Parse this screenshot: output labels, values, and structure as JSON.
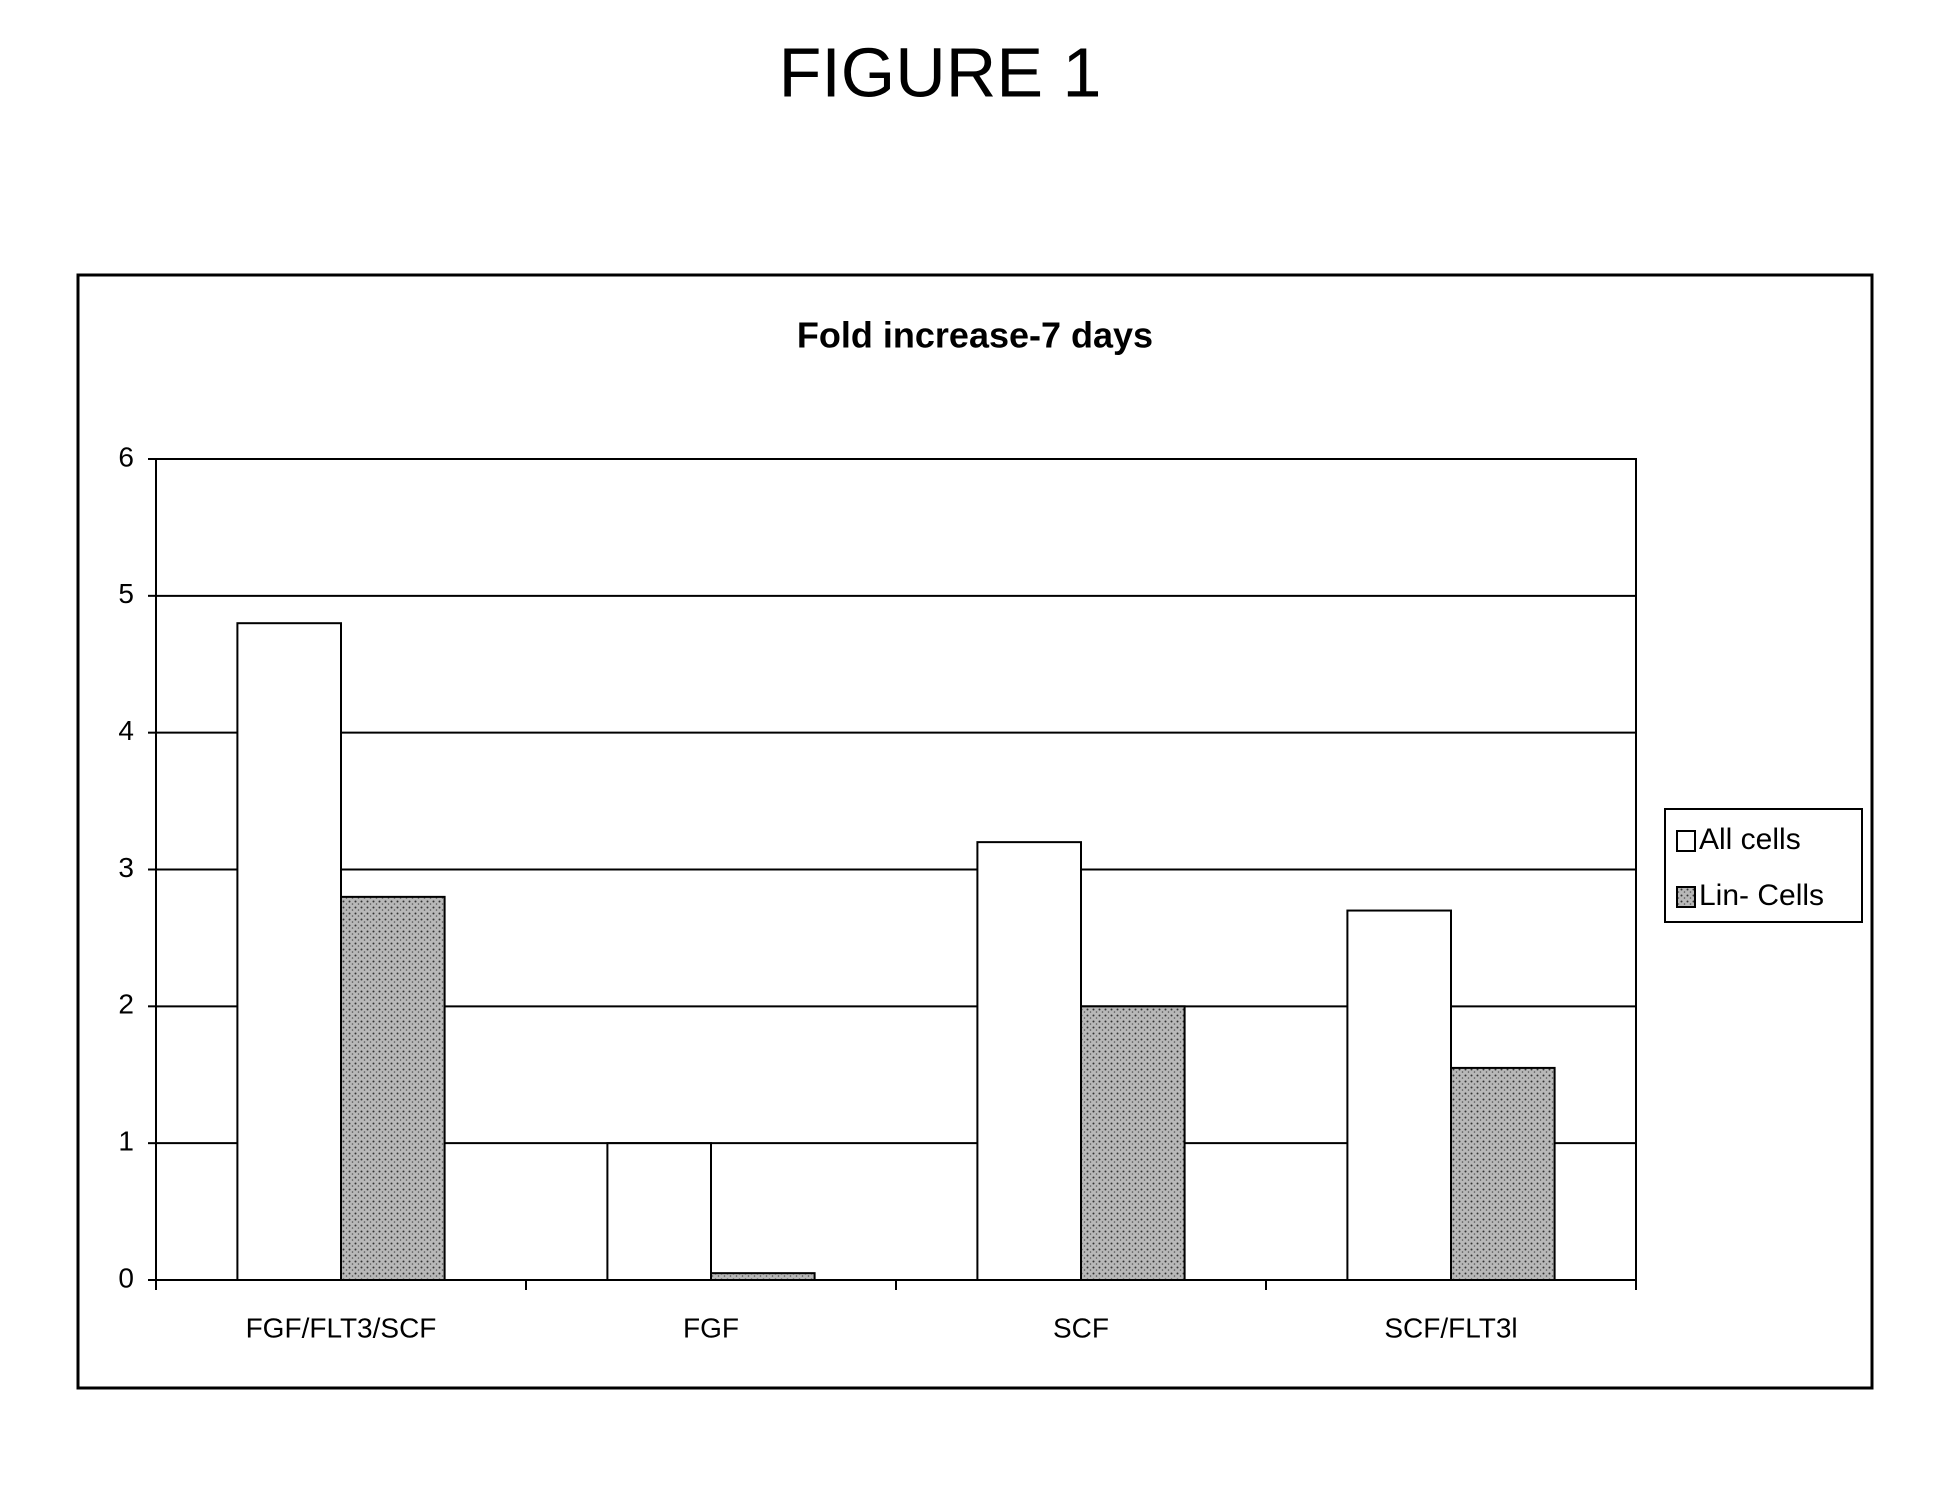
{
  "figure_label": "FIGURE 1",
  "chart_data": {
    "type": "bar",
    "title": "Fold increase-7 days",
    "categories": [
      "FGF/FLT3/SCF",
      "FGF",
      "SCF",
      "SCF/FLT3l"
    ],
    "series": [
      {
        "name": "All cells",
        "color": "#ffffff",
        "values": [
          4.8,
          1.0,
          3.2,
          2.7
        ]
      },
      {
        "name": "Lin- Cells",
        "color": "#b8b8b8",
        "values": [
          2.8,
          0.05,
          2.0,
          1.55
        ]
      }
    ],
    "ylim": [
      0,
      6
    ],
    "yticks": [
      0,
      1,
      2,
      3,
      4,
      5,
      6
    ],
    "grid": true,
    "legend": "right"
  }
}
